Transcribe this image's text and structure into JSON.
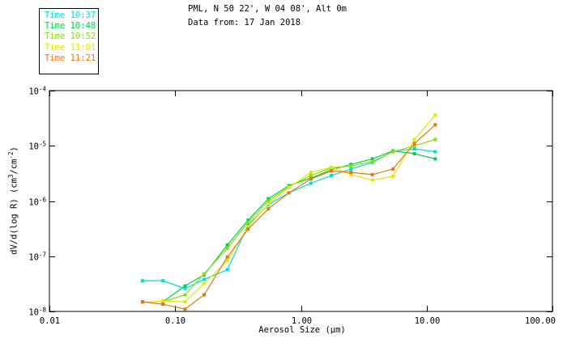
{
  "header": {
    "title_line1": "PML, N 50 22', W 04 08', Alt 0m",
    "title_line2": "Data from: 17 Jan 2018"
  },
  "chart_data": {
    "type": "line",
    "title": "PML, N 50 22', W 04 08', Alt 0m",
    "subtitle": "Data from: 17 Jan 2018",
    "xlabel": "Aerosol Size (μm)",
    "ylabel": "dV/d(log R) (cm3/cm-2)",
    "ylabel_parts": [
      {
        "t": "dV/d(log R) (cm"
      },
      {
        "t": "3",
        "sup": true
      },
      {
        "t": "/cm"
      },
      {
        "t": "-2",
        "sup": true
      },
      {
        "t": ")"
      }
    ],
    "xscale": "log",
    "yscale": "log",
    "xlim": [
      0.01,
      100
    ],
    "ylim": [
      1e-08,
      0.0001
    ],
    "x_tick_values": [
      0.01,
      0.1,
      1,
      10,
      100
    ],
    "x_tick_labels": [
      "0.01",
      "0.10",
      "1.00",
      "10.00",
      "100.00"
    ],
    "y_tick_exponents": [
      -4,
      -5,
      -6,
      -7,
      -8
    ],
    "y_tick_base": "10",
    "grid": false,
    "legend_position": "top-left-outside",
    "marker": "square",
    "x": [
      0.055,
      0.08,
      0.12,
      0.17,
      0.26,
      0.38,
      0.55,
      0.8,
      1.2,
      1.75,
      2.5,
      3.7,
      5.4,
      8.0,
      11.7
    ],
    "series": [
      {
        "name": "Time 10:37",
        "color": "#00DCDC",
        "values": [
          3.6e-08,
          3.6e-08,
          2.6e-08,
          3.8e-08,
          5.7e-08,
          3.7e-07,
          8.6e-07,
          1.4e-06,
          2.1e-06,
          2.9e-06,
          3.8e-06,
          5e-06,
          7.9e-06,
          8.8e-06,
          7.8e-06
        ]
      },
      {
        "name": "Time 10:48",
        "color": "#00D24B",
        "values": [
          null,
          1.5e-08,
          2.9e-08,
          4.6e-08,
          1.6e-07,
          4.5e-07,
          1.1e-06,
          1.9e-06,
          2.6e-06,
          3.7e-06,
          4.6e-06,
          5.8e-06,
          8.1e-06,
          7.2e-06,
          5.8e-06
        ]
      },
      {
        "name": "Time 10:52",
        "color": "#8CDC14",
        "values": [
          null,
          1.5e-08,
          2e-08,
          4.8e-08,
          1.4e-07,
          4.1e-07,
          1e-06,
          1.8e-06,
          2.9e-06,
          4e-06,
          4.3e-06,
          5.2e-06,
          7.8e-06,
          1e-05,
          1.3e-05
        ]
      },
      {
        "name": "Time 11:01",
        "color": "#E6E600",
        "values": [
          1.45e-08,
          1.55e-08,
          1.5e-08,
          3.2e-08,
          8.3e-08,
          3.4e-07,
          8.9e-07,
          1.75e-06,
          3.3e-06,
          4.1e-06,
          3e-06,
          2.4e-06,
          2.8e-06,
          1.3e-05,
          3.6e-05
        ]
      },
      {
        "name": "Time 11:21",
        "color": "#E67812",
        "values": [
          1.5e-08,
          1.35e-08,
          1.1e-08,
          2e-08,
          9.7e-08,
          3.1e-07,
          7.2e-07,
          1.4e-06,
          2.5e-06,
          3.5e-06,
          3.3e-06,
          3e-06,
          3.8e-06,
          1.1e-05,
          2.4e-05
        ]
      }
    ]
  }
}
